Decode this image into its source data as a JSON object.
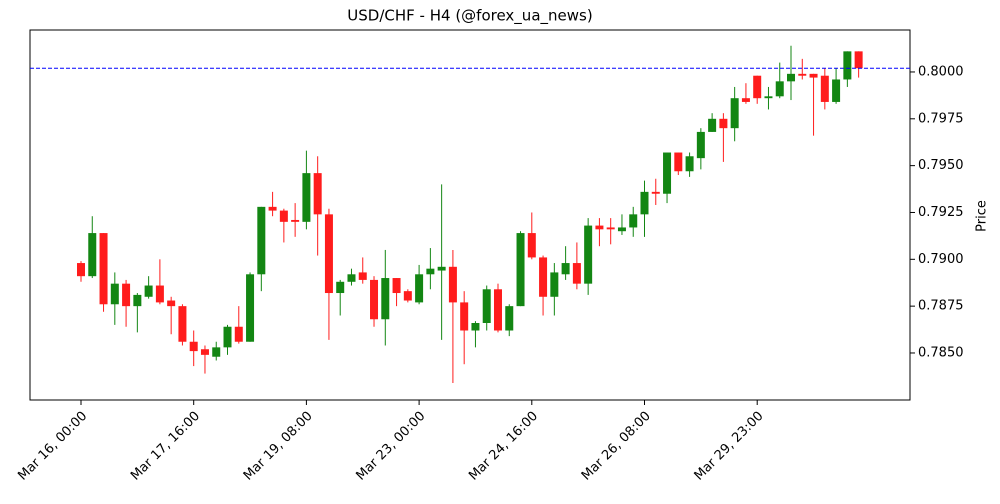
{
  "chart_data": {
    "type": "candlestick",
    "title": "USD/CHF - H4 (@forex_ua_news)",
    "ylabel": "Price",
    "categories": [
      "Mar 16, 00:00",
      null,
      null,
      null,
      null,
      null,
      null,
      null,
      null,
      null,
      "Mar 17, 16:00",
      null,
      null,
      null,
      null,
      null,
      null,
      null,
      null,
      null,
      "Mar 19, 08:00",
      null,
      null,
      null,
      null,
      null,
      null,
      null,
      null,
      null,
      "Mar 23, 00:00",
      null,
      null,
      null,
      null,
      null,
      null,
      null,
      null,
      null,
      "Mar 24, 16:00",
      null,
      null,
      null,
      null,
      null,
      null,
      null,
      null,
      null,
      "Mar 26, 08:00",
      null,
      null,
      null,
      null,
      null,
      null,
      null,
      null,
      null,
      "Mar 29, 23:00",
      null,
      null,
      null,
      null,
      null,
      null,
      null,
      null,
      null
    ],
    "open": [
      0.7898,
      0.7891,
      0.7914,
      0.7876,
      0.7887,
      0.7875,
      0.788,
      0.7886,
      0.7878,
      0.7875,
      0.7856,
      0.7852,
      0.7848,
      0.7853,
      0.7864,
      0.7856,
      0.7892,
      0.7928,
      0.7926,
      0.7921,
      0.792,
      0.7946,
      0.7924,
      0.7882,
      0.7888,
      0.7893,
      0.7889,
      0.7868,
      0.789,
      0.7883,
      0.7877,
      0.7892,
      0.7894,
      0.7896,
      0.7877,
      0.7862,
      0.7866,
      0.7884,
      0.7862,
      0.7875,
      0.7914,
      0.7901,
      0.788,
      0.7892,
      0.7898,
      0.7887,
      0.7918,
      0.7917,
      0.7915,
      0.7917,
      0.7924,
      0.7936,
      0.7935,
      0.7957,
      0.7947,
      0.7954,
      0.7968,
      0.7975,
      0.797,
      0.7986,
      0.7998,
      0.7986,
      0.7987,
      0.7995,
      0.7999,
      0.7999,
      0.7998,
      0.7984,
      0.7996,
      0.8011
    ],
    "high": [
      0.7899,
      0.7923,
      0.7914,
      0.7893,
      0.7889,
      0.7882,
      0.7891,
      0.79,
      0.788,
      0.7876,
      0.7862,
      0.7854,
      0.7856,
      0.7865,
      0.7875,
      0.7893,
      0.7928,
      0.7936,
      0.7927,
      0.793,
      0.7958,
      0.7955,
      0.7927,
      0.7889,
      0.7895,
      0.7901,
      0.7891,
      0.7905,
      0.789,
      0.7884,
      0.7897,
      0.7906,
      0.794,
      0.7905,
      0.7883,
      0.7867,
      0.7886,
      0.7887,
      0.7876,
      0.7915,
      0.7925,
      0.7902,
      0.7898,
      0.7907,
      0.7909,
      0.7922,
      0.7922,
      0.7922,
      0.7924,
      0.7928,
      0.7942,
      0.7943,
      0.7957,
      0.7957,
      0.7957,
      0.797,
      0.7978,
      0.7978,
      0.7992,
      0.7994,
      0.7998,
      0.7992,
      0.8005,
      0.8014,
      0.8007,
      0.7999,
      0.8002,
      0.8002,
      0.8011,
      0.8011
    ],
    "low": [
      0.7888,
      0.789,
      0.7872,
      0.7865,
      0.7864,
      0.7861,
      0.7879,
      0.7876,
      0.786,
      0.7854,
      0.7843,
      0.7839,
      0.7846,
      0.7849,
      0.7855,
      0.7856,
      0.7883,
      0.7923,
      0.7909,
      0.7912,
      0.7916,
      0.7902,
      0.7857,
      0.787,
      0.7886,
      0.7887,
      0.7864,
      0.7854,
      0.7875,
      0.7877,
      0.7876,
      0.7884,
      0.7857,
      0.7834,
      0.7844,
      0.7853,
      0.7862,
      0.7861,
      0.7859,
      0.7875,
      0.79,
      0.787,
      0.787,
      0.7889,
      0.7884,
      0.7881,
      0.7907,
      0.7908,
      0.7913,
      0.7912,
      0.7912,
      0.7929,
      0.793,
      0.7945,
      0.7944,
      0.7948,
      0.7968,
      0.7952,
      0.7963,
      0.7983,
      0.7983,
      0.798,
      0.7986,
      0.7985,
      0.7996,
      0.7966,
      0.798,
      0.7983,
      0.7992,
      0.7997
    ],
    "close": [
      0.7891,
      0.7914,
      0.7876,
      0.7887,
      0.7875,
      0.7881,
      0.7886,
      0.7877,
      0.7875,
      0.7856,
      0.7851,
      0.7849,
      0.7853,
      0.7864,
      0.7856,
      0.7892,
      0.7928,
      0.7926,
      0.792,
      0.792,
      0.7946,
      0.7924,
      0.7882,
      0.7888,
      0.7892,
      0.7889,
      0.7868,
      0.789,
      0.7882,
      0.7878,
      0.7892,
      0.7895,
      0.7896,
      0.7877,
      0.7862,
      0.7866,
      0.7884,
      0.7862,
      0.7875,
      0.7914,
      0.7901,
      0.788,
      0.7893,
      0.7898,
      0.7887,
      0.7918,
      0.7916,
      0.7916,
      0.7917,
      0.7924,
      0.7936,
      0.7935,
      0.7957,
      0.7947,
      0.7955,
      0.7968,
      0.7975,
      0.797,
      0.7986,
      0.7984,
      0.7986,
      0.7987,
      0.7995,
      0.7999,
      0.7998,
      0.7997,
      0.7984,
      0.7996,
      0.8011,
      0.8002
    ],
    "up_color": "#138613",
    "down_color": "#ff1c1c",
    "hline": 0.8002,
    "hline_color": "#0000ff",
    "ylim": [
      0.78249,
      0.80224
    ],
    "yticks": [
      {
        "value": 0.785,
        "label": "0.7850"
      },
      0.7875,
      {
        "value": 0.79,
        "label": "0.7900"
      },
      0.7925,
      {
        "value": 0.795,
        "label": "0.7950"
      },
      0.7975,
      {
        "value": 0.8,
        "label": "0.8000"
      }
    ]
  }
}
